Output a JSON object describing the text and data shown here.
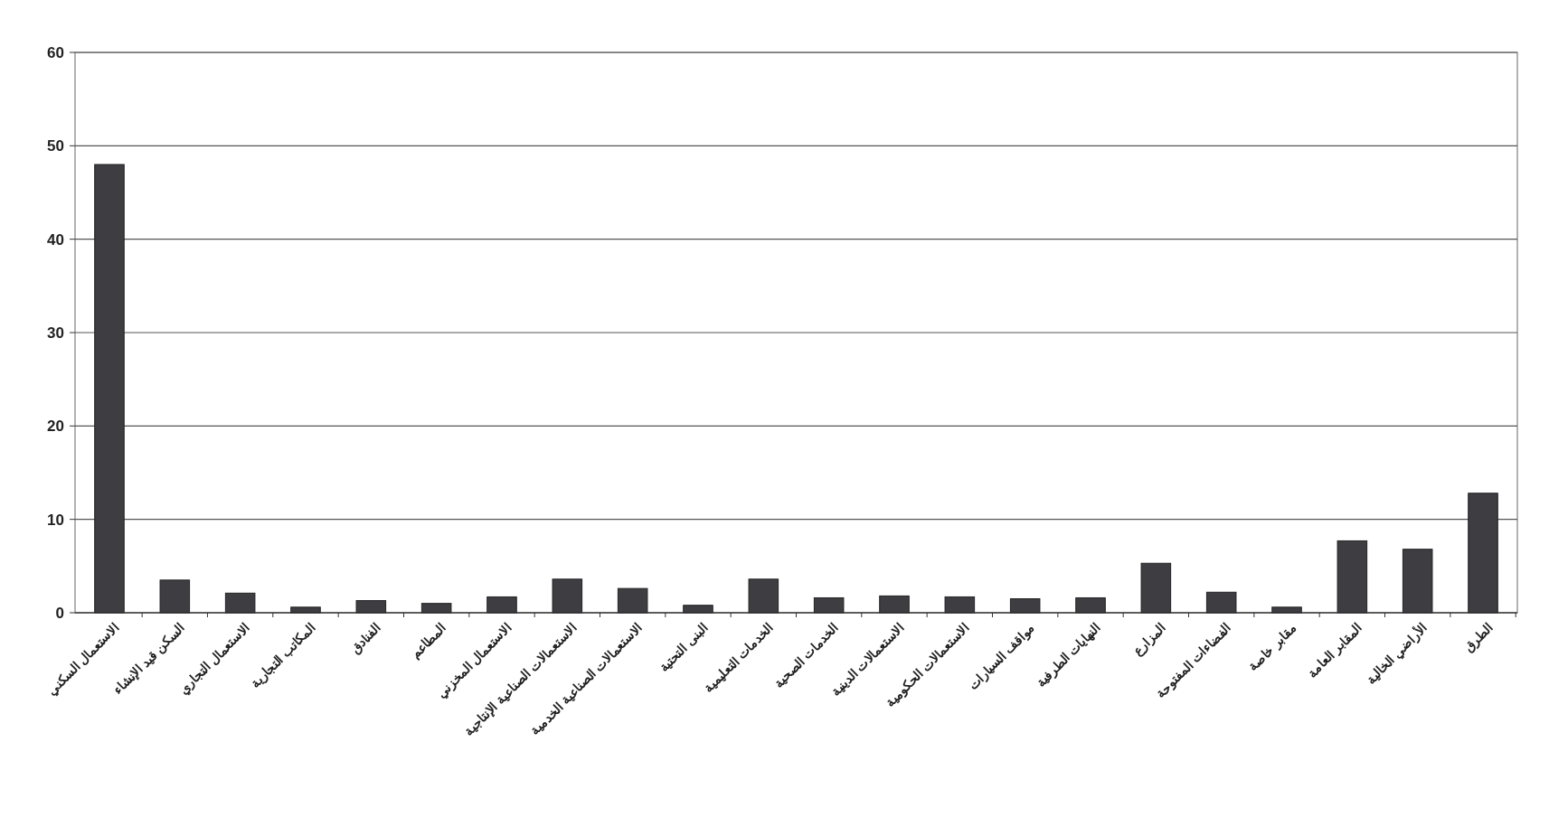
{
  "chart_data": {
    "type": "bar",
    "categories": [
      "الاستعمال السكني",
      "السكن قيد الإنشاء",
      "الاستعمال التجاري",
      "المكاتب التجارية",
      "الفنادق",
      "المطاعم",
      "الاستعمال المخزني",
      "الاستعمالات الصناعية الإنتاجية",
      "الاستعمالات الصناعية الخدمية",
      "البنى التحتية",
      "الخدمات التعليمية",
      "الخدمات الصحية",
      "الاستعمالات الدينية",
      "الاستعمالات الحكومية",
      "مواقف السيارات",
      "النهايات الطرفية",
      "المزارع",
      "الفضاءات المفتوحة",
      "مقابر خاصة",
      "المقابر العامة",
      "الأراضي الخالية",
      "الطرق"
    ],
    "values": [
      48,
      3.5,
      2.1,
      0.6,
      1.3,
      1,
      1.7,
      3.6,
      2.6,
      0.8,
      3.6,
      1.6,
      1.8,
      1.7,
      1.5,
      1.6,
      5.3,
      2.2,
      0.6,
      7.7,
      6.8,
      12.8
    ],
    "color": "#3d3d42",
    "ylim": [
      0,
      60
    ],
    "yticks": [
      0,
      10,
      20,
      30,
      40,
      50,
      60
    ],
    "grid": "y"
  }
}
